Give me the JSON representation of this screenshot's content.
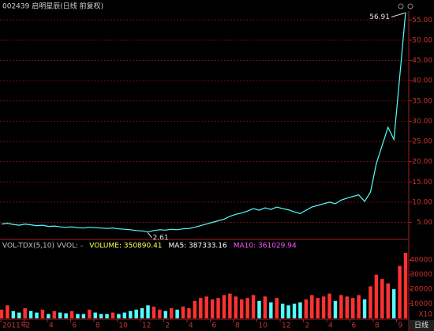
{
  "chart_data": {
    "type": "stock",
    "title": "002439 启明星辰(日线 前复权)",
    "price": {
      "color": "#54ffff",
      "values": [
        4.6,
        4.8,
        4.5,
        4.3,
        4.6,
        4.4,
        4.2,
        4.3,
        4.0,
        4.1,
        3.9,
        3.8,
        3.9,
        3.7,
        3.6,
        3.8,
        3.7,
        3.6,
        3.5,
        3.6,
        3.4,
        3.3,
        3.2,
        3.0,
        2.9,
        2.61,
        3.0,
        3.2,
        3.1,
        3.3,
        3.2,
        3.4,
        3.5,
        3.8,
        4.2,
        4.6,
        5.0,
        5.4,
        5.8,
        6.5,
        7.0,
        7.3,
        7.8,
        8.4,
        8.0,
        8.6,
        8.2,
        8.8,
        8.4,
        8.1,
        7.6,
        7.2,
        8.0,
        8.8,
        9.2,
        9.6,
        10.0,
        9.6,
        10.5,
        11.0,
        11.4,
        11.8,
        10.2,
        12.5,
        19.5,
        24.0,
        28.5,
        25.5,
        41.0,
        56.91
      ],
      "ylim": [
        1.2,
        57.2
      ],
      "yticks": [
        {
          "value": 5,
          "label": "5.00"
        },
        {
          "value": 10,
          "label": "10.00"
        },
        {
          "value": 15,
          "label": "15.00"
        },
        {
          "value": 20,
          "label": "20.00"
        },
        {
          "value": 25,
          "label": "25.00"
        },
        {
          "value": 30,
          "label": "30.00"
        },
        {
          "value": 35,
          "label": "35.00"
        },
        {
          "value": 40,
          "label": "40.00"
        },
        {
          "value": 45,
          "label": "45.00"
        },
        {
          "value": 50,
          "label": "50.00"
        },
        {
          "value": 55,
          "label": "55.00"
        }
      ],
      "grid": true
    },
    "volume": {
      "up_color": "#ff3232",
      "down_color": "#54ffff",
      "values": [
        6000,
        9000,
        5000,
        4000,
        7000,
        5000,
        4000,
        6000,
        3000,
        5000,
        4000,
        3500,
        5000,
        3000,
        3000,
        6000,
        4000,
        3000,
        3000,
        4000,
        3000,
        4000,
        5000,
        6000,
        7000,
        9000,
        8000,
        6000,
        5000,
        7000,
        6000,
        8000,
        7000,
        12000,
        14000,
        15000,
        13000,
        14000,
        16000,
        17000,
        15000,
        13000,
        14000,
        16000,
        12000,
        15000,
        11000,
        14000,
        10000,
        9000,
        10000,
        11000,
        13000,
        16000,
        14000,
        15000,
        17000,
        12000,
        16000,
        15000,
        14000,
        16000,
        13000,
        22000,
        30000,
        27000,
        24000,
        20000,
        36000,
        45000
      ],
      "ylim": [
        0,
        45000
      ],
      "yticks": [
        10000,
        20000,
        30000,
        40000
      ],
      "unit": "X10",
      "indicators": [
        {
          "text": "VOL-TDX(5,10)  VVOL: -",
          "color": "#c0c0c0"
        },
        {
          "text": "VOLUME: 350890.41",
          "color": "#ffff54"
        },
        {
          "text": "MA5: 387333.16",
          "color": "#ffffff"
        },
        {
          "text": "MA10: 361029.94",
          "color": "#ff54ff"
        }
      ]
    },
    "x_labels": [
      "2011年",
      "2",
      "4",
      "6",
      "8",
      "10",
      "12",
      "2",
      "4",
      "6",
      "8",
      "10",
      "12",
      "2",
      "4",
      "6",
      "8",
      "9"
    ],
    "period": "日线"
  }
}
